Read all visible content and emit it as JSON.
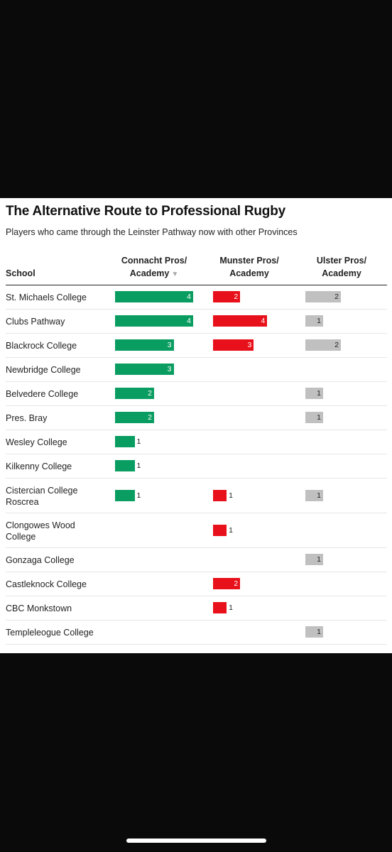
{
  "title": "The Alternative Route to Professional Rugby",
  "subtitle": "Players who came through the Leinster Pathway now with other Provinces",
  "headers": {
    "school": "School",
    "connacht_1": "Connacht Pros/",
    "connacht_2": "Academy",
    "munster_1": "Munster Pros/",
    "munster_2": "Academy",
    "ulster_1": "Ulster Pros/",
    "ulster_2": "Academy",
    "sort_icon": "▼"
  },
  "colors": {
    "connacht": "#0a9d61",
    "munster": "#e8101a",
    "ulster": "#c0c0c0"
  },
  "chart_data": {
    "type": "table",
    "columns": [
      "School",
      "Connacht Pros/ Academy",
      "Munster Pros/ Academy",
      "Ulster Pros/ Academy"
    ],
    "series": [
      {
        "name": "Connacht Pros/ Academy",
        "values": [
          4,
          4,
          3,
          3,
          2,
          2,
          1,
          1,
          1,
          null,
          null,
          null,
          null,
          null
        ]
      },
      {
        "name": "Munster Pros/ Academy",
        "values": [
          2,
          4,
          3,
          null,
          null,
          null,
          null,
          null,
          1,
          1,
          null,
          2,
          1,
          null
        ]
      },
      {
        "name": "Ulster Pros/ Academy",
        "values": [
          2,
          1,
          2,
          null,
          1,
          1,
          null,
          null,
          1,
          null,
          1,
          null,
          null,
          1
        ]
      }
    ],
    "categories": [
      "St. Michaels College",
      "Clubs Pathway",
      "Blackrock College",
      "Newbridge College",
      "Belvedere College",
      "Pres. Bray",
      "Wesley College",
      "Kilkenny College",
      "Cistercian College Roscrea",
      "Clongowes Wood College",
      "Gonzaga College",
      "Castleknock College",
      "CBC Monkstown",
      "Templeleogue College"
    ],
    "rows": [
      {
        "school": [
          "St. Michaels College"
        ],
        "connacht": 4,
        "munster": 2,
        "ulster": 2
      },
      {
        "school": [
          "Clubs Pathway"
        ],
        "connacht": 4,
        "munster": 4,
        "ulster": 1
      },
      {
        "school": [
          "Blackrock College"
        ],
        "connacht": 3,
        "munster": 3,
        "ulster": 2
      },
      {
        "school": [
          "Newbridge College"
        ],
        "connacht": 3,
        "munster": null,
        "ulster": null
      },
      {
        "school": [
          "Belvedere College"
        ],
        "connacht": 2,
        "munster": null,
        "ulster": 1
      },
      {
        "school": [
          "Pres. Bray"
        ],
        "connacht": 2,
        "munster": null,
        "ulster": 1
      },
      {
        "school": [
          "Wesley College"
        ],
        "connacht": 1,
        "munster": null,
        "ulster": null
      },
      {
        "school": [
          "Kilkenny College"
        ],
        "connacht": 1,
        "munster": null,
        "ulster": null
      },
      {
        "school": [
          "Cistercian College",
          "Roscrea"
        ],
        "connacht": 1,
        "munster": 1,
        "ulster": 1
      },
      {
        "school": [
          "Clongowes Wood",
          "College"
        ],
        "connacht": null,
        "munster": 1,
        "ulster": null
      },
      {
        "school": [
          "Gonzaga College"
        ],
        "connacht": null,
        "munster": null,
        "ulster": 1
      },
      {
        "school": [
          "Castleknock College"
        ],
        "connacht": null,
        "munster": 2,
        "ulster": null
      },
      {
        "school": [
          "CBC Monkstown"
        ],
        "connacht": null,
        "munster": 1,
        "ulster": null
      },
      {
        "school": [
          "Templeleogue College"
        ],
        "connacht": null,
        "munster": null,
        "ulster": 1
      }
    ],
    "scale_max": {
      "connacht": 4,
      "munster": 4,
      "ulster": 2
    }
  }
}
